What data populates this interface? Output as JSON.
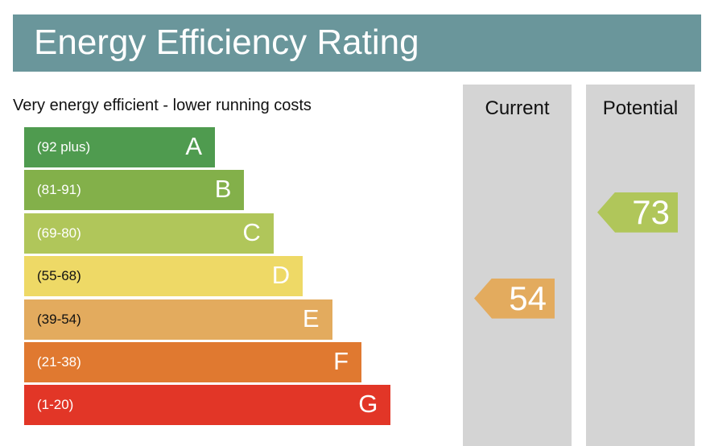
{
  "title": "Energy Efficiency Rating",
  "subtitle": "Very energy efficient - lower running costs",
  "bands": [
    {
      "letter": "A",
      "range": "(92 plus)",
      "color": "#4f9b4f"
    },
    {
      "letter": "B",
      "range": "(81-91)",
      "color": "#83b04a"
    },
    {
      "letter": "C",
      "range": "(69-80)",
      "color": "#b0c65a"
    },
    {
      "letter": "D",
      "range": "(55-68)",
      "color": "#eed966"
    },
    {
      "letter": "E",
      "range": "(39-54)",
      "color": "#e3ab5e"
    },
    {
      "letter": "F",
      "range": "(21-38)",
      "color": "#e07930"
    },
    {
      "letter": "G",
      "range": "(1-20)",
      "color": "#e23627"
    }
  ],
  "columns": {
    "current_label": "Current",
    "potential_label": "Potential"
  },
  "ratings": {
    "current": {
      "value": "54",
      "band": "E",
      "color": "#e3ab5e"
    },
    "potential": {
      "value": "73",
      "band": "C",
      "color": "#b0c65a"
    }
  },
  "colors": {
    "header_bg": "#6a969b",
    "column_bg": "#d4d4d4"
  }
}
